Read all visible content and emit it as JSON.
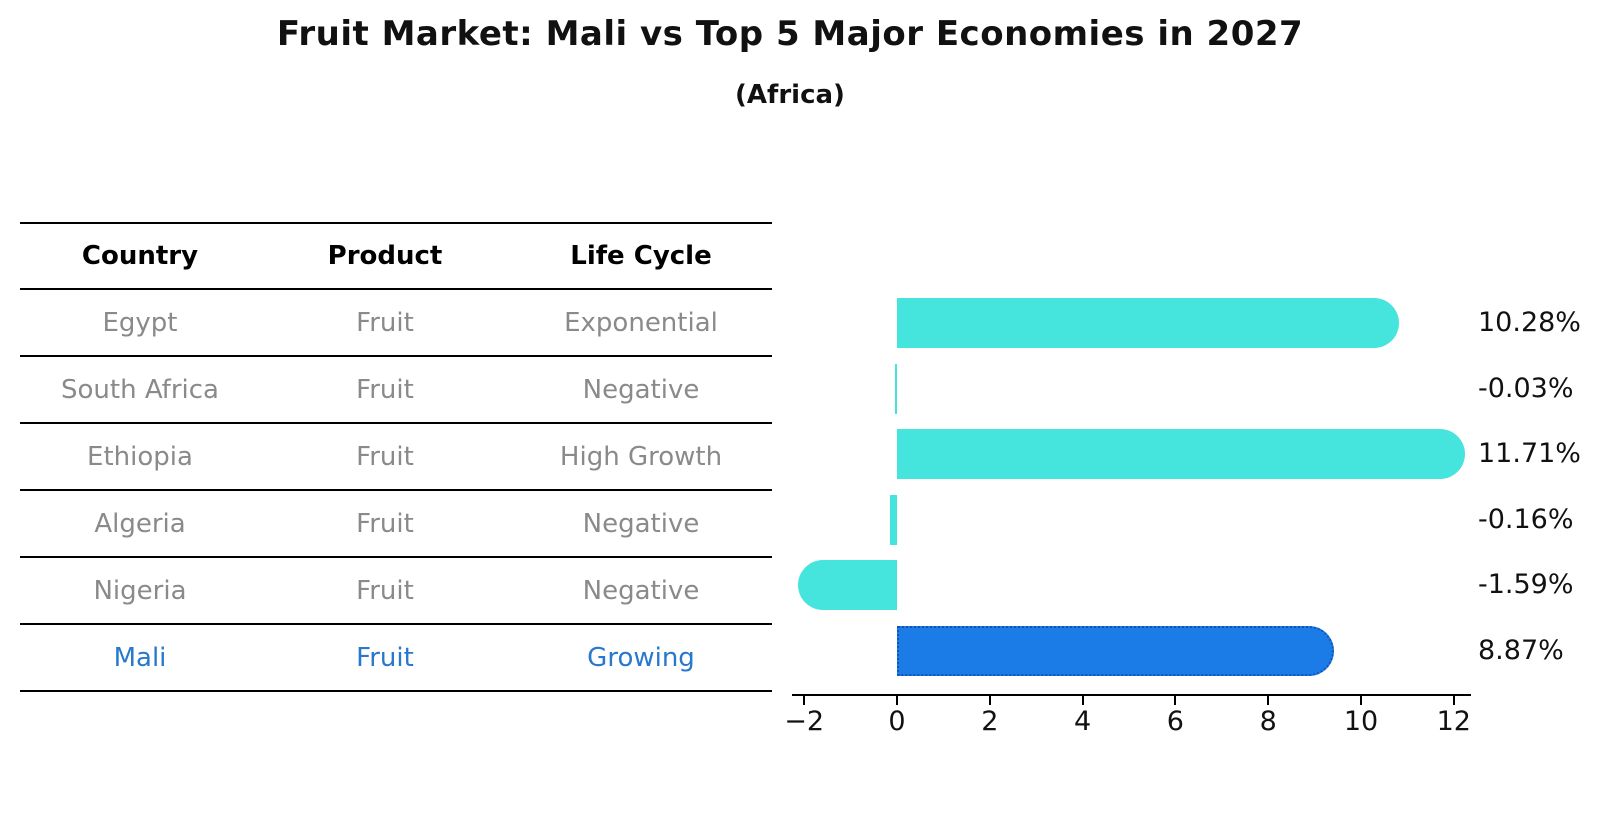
{
  "title": "Fruit Market: Mali vs Top 5 Major Economies in 2027",
  "subtitle": "(Africa)",
  "table": {
    "headers": [
      "Country",
      "Product",
      "Life Cycle"
    ],
    "rows": [
      {
        "country": "Egypt",
        "product": "Fruit",
        "life_cycle": "Exponential",
        "highlight": false
      },
      {
        "country": "South Africa",
        "product": "Fruit",
        "life_cycle": "Negative",
        "highlight": false
      },
      {
        "country": "Ethiopia",
        "product": "Fruit",
        "life_cycle": "High Growth",
        "highlight": false
      },
      {
        "country": "Algeria",
        "product": "Fruit",
        "life_cycle": "Negative",
        "highlight": false
      },
      {
        "country": "Nigeria",
        "product": "Fruit",
        "life_cycle": "Negative",
        "highlight": false
      },
      {
        "country": "Mali",
        "product": "Fruit",
        "life_cycle": "Growing",
        "highlight": true
      }
    ]
  },
  "chart_data": {
    "type": "bar",
    "orientation": "horizontal",
    "title": "Fruit Market: Mali vs Top 5 Major Economies in 2027",
    "subtitle": "(Africa)",
    "categories": [
      "Egypt",
      "South Africa",
      "Ethiopia",
      "Algeria",
      "Nigeria",
      "Mali"
    ],
    "values": [
      10.28,
      -0.03,
      11.71,
      -0.16,
      -1.59,
      8.87
    ],
    "value_labels": [
      "10.28%",
      "-0.03%",
      "11.71%",
      "-0.16%",
      "-1.59%",
      "8.87%"
    ],
    "x_ticks": [
      -2,
      0,
      2,
      4,
      6,
      8,
      10,
      12
    ],
    "x_tick_labels": [
      "−2",
      "0",
      "2",
      "4",
      "6",
      "8",
      "10",
      "12"
    ],
    "xlim": [
      -2.3,
      12.4
    ],
    "xlabel": "",
    "ylabel": "",
    "grid": false,
    "legend": false,
    "bar_color": "#45e4dc",
    "highlight_index": 5,
    "highlight_bar_color": "#1b7ce8",
    "highlight_bar_border": "#1254b4",
    "highlight_text_color": "#2878ce"
  },
  "colors": {
    "text": "#111111",
    "muted_text": "#8a8a8a",
    "table_line": "#000000",
    "bar_cyan": "#45e4dc",
    "bar_blue": "#1b7ce8",
    "accent_blue": "#2878ce"
  }
}
